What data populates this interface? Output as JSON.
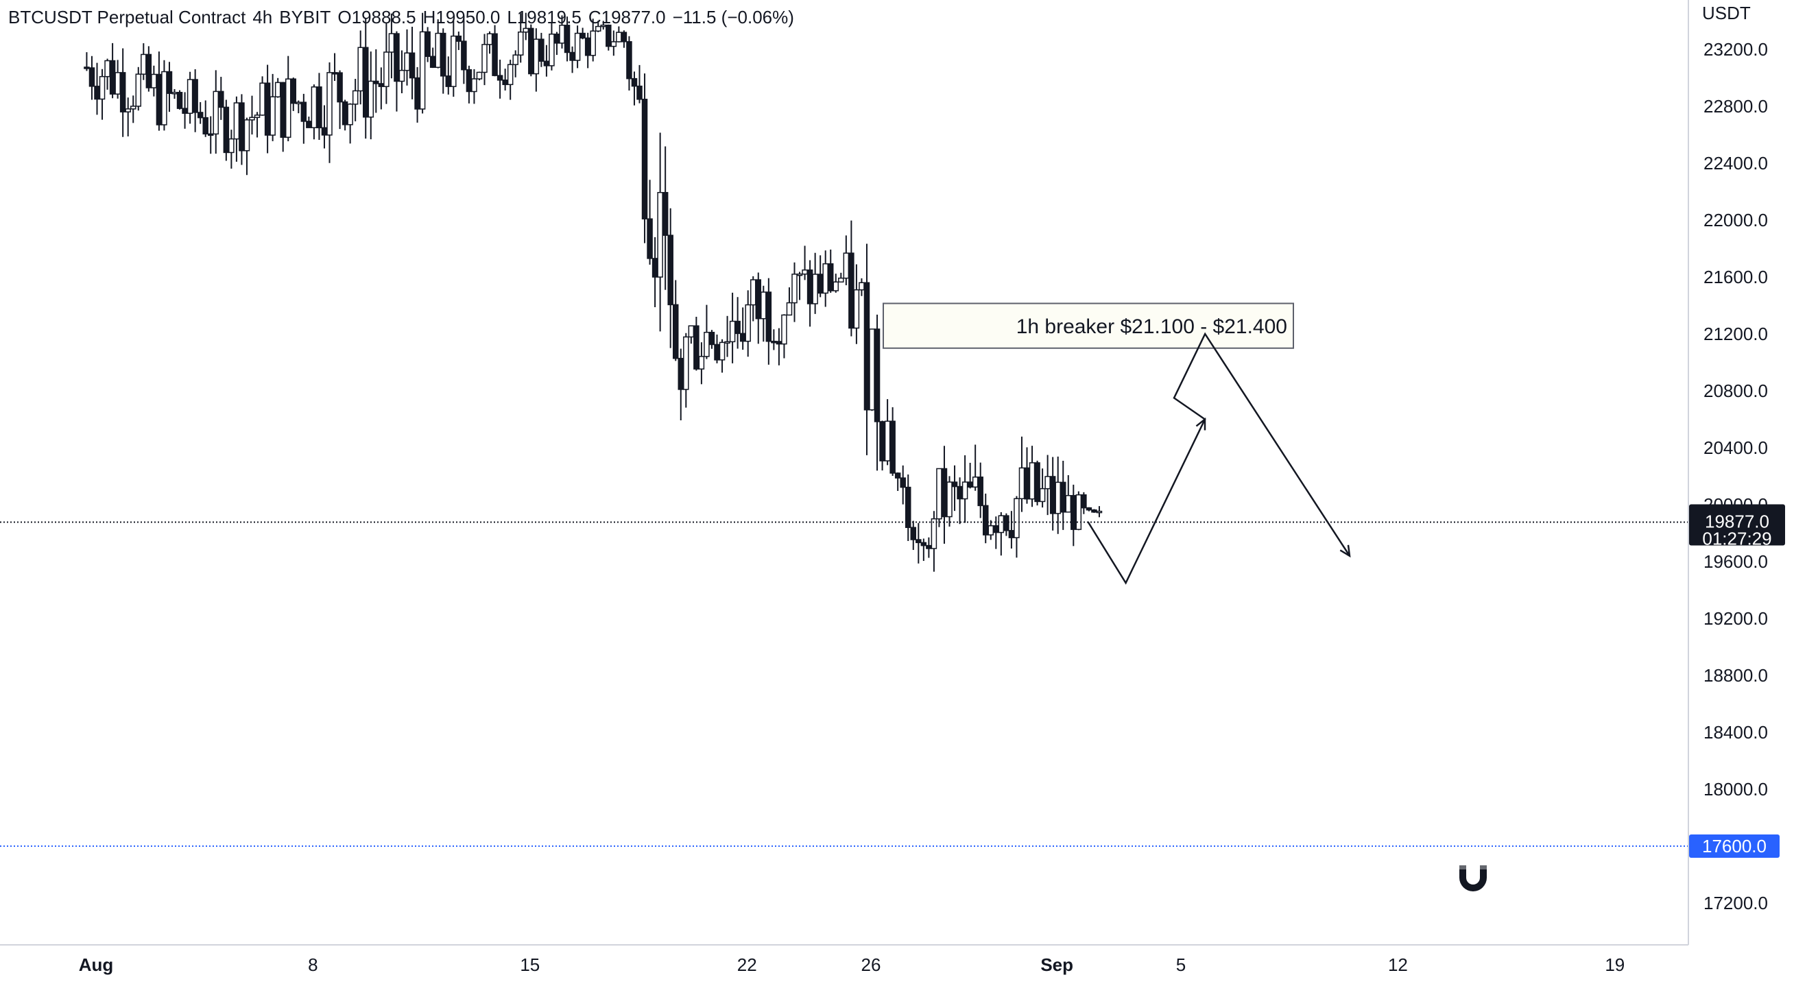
{
  "header": {
    "symbol": "BTCUSDT Perpetual Contract",
    "interval": "4h",
    "exchange": "BYBIT",
    "open": "O19888.5",
    "high": "H19950.0",
    "low": "L19819.5",
    "close": "C19877.0",
    "change": "−11.5 (−0.06%)"
  },
  "axis": {
    "currency": "USDT",
    "price_ticks": [
      "23200.0",
      "22800.0",
      "22400.0",
      "22000.0",
      "21600.0",
      "21200.0",
      "20800.0",
      "20400.0",
      "20000.0",
      "19600.0",
      "19200.0",
      "18800.0",
      "18400.0",
      "18000.0",
      "17200.0"
    ],
    "time_ticks": [
      "Aug",
      "8",
      "15",
      "22",
      "26",
      "Sep",
      "5",
      "12",
      "19"
    ]
  },
  "last_price": {
    "value": "19877.0",
    "countdown": "01:27:29"
  },
  "level_label": "17600.0",
  "annotation": {
    "text": "1h breaker $21.100 - $21.400",
    "zone_low": 21100,
    "zone_high": 21400
  },
  "magnet_icon": "magnet-icon",
  "colors": {
    "candle": "#131722",
    "level": "#2962ff",
    "price_line": "#131722",
    "zone_fill": "#fdfdf5"
  },
  "chart_data": {
    "type": "candlestick",
    "y_unit": "USDT",
    "ylim": [
      16950,
      23450
    ],
    "levels": [
      19877,
      17600
    ],
    "breaker_zone": [
      21100,
      21400
    ],
    "projection_path": [
      {
        "x": "Sep 2",
        "y": 19880
      },
      {
        "x": "Sep 3",
        "y": 19450
      },
      {
        "x": "Sep 5",
        "y": 20600
      },
      {
        "x": "Sep 5",
        "y": 20750
      },
      {
        "x": "Sep 6",
        "y": 21200
      },
      {
        "x": "Sep 10",
        "y": 19640
      }
    ],
    "series_anchors": [
      {
        "x": "Aug 1",
        "high": 23450,
        "low": 22700
      },
      {
        "x": "Aug 5",
        "high": 23000,
        "low": 22360
      },
      {
        "x": "Aug 10",
        "high": 23450,
        "low": 22520
      },
      {
        "x": "Aug 18",
        "high": 23450,
        "low": 23150
      },
      {
        "x": "Aug 19",
        "high": 23200,
        "low": 21200
      },
      {
        "x": "Aug 20",
        "high": 21500,
        "low": 20750
      },
      {
        "x": "Aug 22",
        "high": 21800,
        "low": 20850
      },
      {
        "x": "Aug 25",
        "high": 21900,
        "low": 21300
      },
      {
        "x": "Aug 26",
        "high": 21900,
        "low": 20300
      },
      {
        "x": "Aug 27",
        "high": 20300,
        "low": 19800
      },
      {
        "x": "Aug 29",
        "high": 20450,
        "low": 19550
      },
      {
        "x": "Aug 30",
        "high": 20500,
        "low": 19550
      },
      {
        "x": "Aug 31",
        "high": 20500,
        "low": 19580
      },
      {
        "x": "Sep 1",
        "high": 20430,
        "low": 19610
      },
      {
        "x": "Sep 2",
        "high": 20000,
        "low": 19820
      }
    ]
  }
}
